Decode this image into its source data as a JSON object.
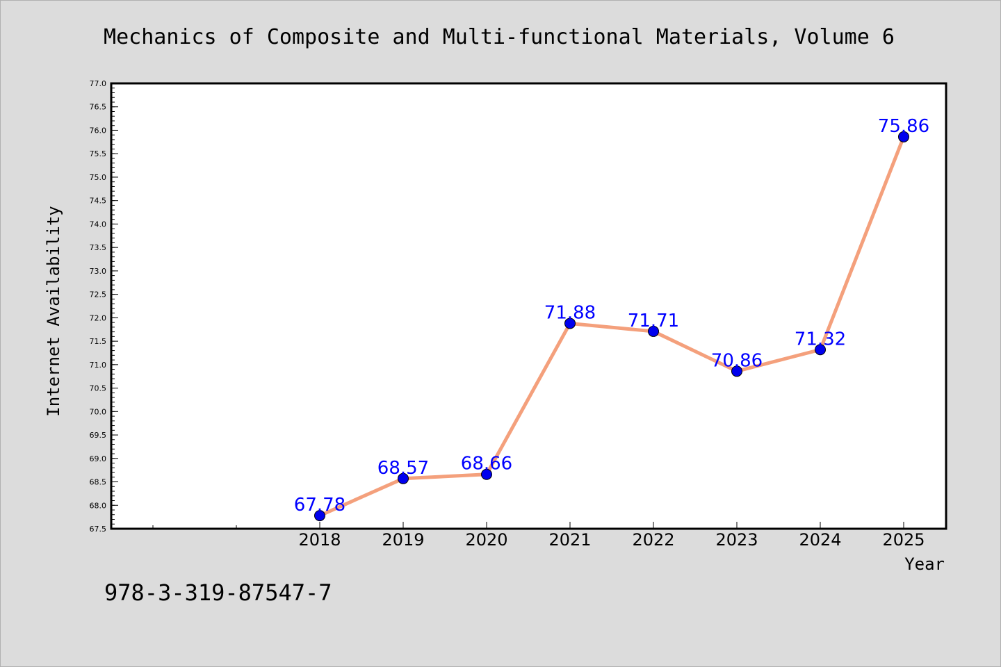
{
  "chart_data": {
    "type": "line",
    "title": "Mechanics of Composite and Multi-functional Materials, Volume 6",
    "xlabel": "Year",
    "ylabel": "Internet Availability",
    "categories": [
      "2018",
      "2019",
      "2020",
      "2021",
      "2022",
      "2023",
      "2024",
      "2025"
    ],
    "series": [
      {
        "values": [
          67.78,
          68.57,
          68.66,
          71.88,
          71.71,
          70.86,
          71.32,
          75.86
        ]
      }
    ],
    "ylim": [
      67.5,
      77.0
    ],
    "yticks": [
      "67.5",
      "68.0",
      "68.5",
      "69.0",
      "69.5",
      "70.0",
      "70.5",
      "71.0",
      "71.5",
      "72.0",
      "72.5",
      "73.0",
      "73.5",
      "74.0",
      "74.5",
      "75.0",
      "75.5",
      "76.0",
      "76.5",
      "77.0"
    ],
    "grid": false,
    "line_color": "#f4a07c",
    "marker_color": "#0000ee",
    "label_color": "#0000ff",
    "footnote": "978-3-319-87547-7"
  }
}
